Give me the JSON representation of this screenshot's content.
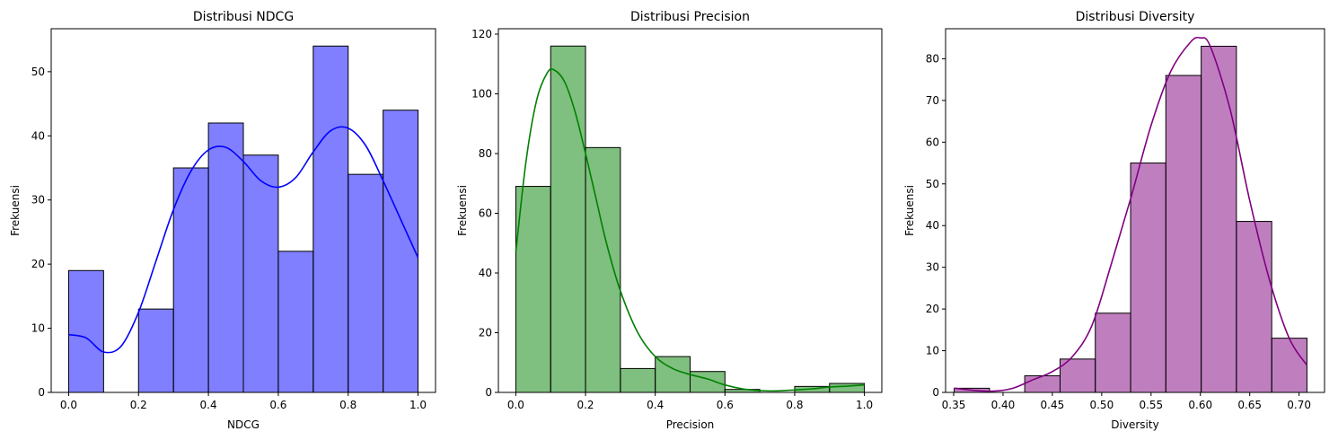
{
  "chart_data": [
    {
      "type": "histogram",
      "title": "Distribusi NDCG",
      "xlabel": "NDCG",
      "ylabel": "Frekuensi",
      "color": "#0000ff",
      "xlim": [
        -0.05,
        1.05
      ],
      "ylim": [
        0,
        56.7
      ],
      "xticks": [
        0.0,
        0.2,
        0.4,
        0.6,
        0.8,
        1.0
      ],
      "xtick_labels": [
        "0.0",
        "0.2",
        "0.4",
        "0.6",
        "0.8",
        "1.0"
      ],
      "yticks": [
        0,
        10,
        20,
        30,
        40,
        50
      ],
      "ytick_labels": [
        "0",
        "10",
        "20",
        "30",
        "40",
        "50"
      ],
      "bins": [
        0.0,
        0.1,
        0.2,
        0.3,
        0.4,
        0.5,
        0.6,
        0.7,
        0.8,
        0.9,
        1.0
      ],
      "counts": [
        19,
        0,
        13,
        35,
        42,
        37,
        22,
        54,
        34,
        44
      ],
      "kde": {
        "x": [
          0.0,
          0.05,
          0.1,
          0.15,
          0.2,
          0.25,
          0.3,
          0.35,
          0.4,
          0.45,
          0.5,
          0.55,
          0.6,
          0.65,
          0.7,
          0.75,
          0.8,
          0.85,
          0.9,
          0.95,
          1.0
        ],
        "y": [
          9,
          8.5,
          6.3,
          7.2,
          12.5,
          20.5,
          28.5,
          34.5,
          37.8,
          38.2,
          36,
          33,
          32,
          33.5,
          37.5,
          40.8,
          41.2,
          38.5,
          33,
          27,
          21
        ]
      }
    },
    {
      "type": "histogram",
      "title": "Distribusi Precision",
      "xlabel": "Precision",
      "ylabel": "Frekuensi",
      "color": "#008000",
      "xlim": [
        -0.05,
        1.05
      ],
      "ylim": [
        0,
        121.8
      ],
      "xticks": [
        0.0,
        0.2,
        0.4,
        0.6,
        0.8,
        1.0
      ],
      "xtick_labels": [
        "0.0",
        "0.2",
        "0.4",
        "0.6",
        "0.8",
        "1.0"
      ],
      "yticks": [
        0,
        20,
        40,
        60,
        80,
        100,
        120
      ],
      "ytick_labels": [
        "0",
        "20",
        "40",
        "60",
        "80",
        "100",
        "120"
      ],
      "bins": [
        0.0,
        0.1,
        0.2,
        0.3,
        0.4,
        0.5,
        0.6,
        0.7,
        0.8,
        0.9,
        1.0
      ],
      "counts": [
        69,
        116,
        82,
        8,
        12,
        7,
        1,
        0,
        2,
        3
      ],
      "kde": {
        "x": [
          0.0,
          0.03,
          0.06,
          0.09,
          0.11,
          0.14,
          0.17,
          0.2,
          0.23,
          0.26,
          0.3,
          0.35,
          0.4,
          0.45,
          0.5,
          0.55,
          0.6,
          0.65,
          0.7,
          0.75,
          0.8,
          0.85,
          0.9,
          0.95,
          1.0
        ],
        "y": [
          47,
          78,
          98,
          107,
          108,
          104,
          94,
          80,
          65,
          50,
          34,
          20,
          12,
          8,
          6,
          4.5,
          2.5,
          1.2,
          0.6,
          0.5,
          0.8,
          1.2,
          1.8,
          2.1,
          2.5
        ]
      }
    },
    {
      "type": "histogram",
      "title": "Distribusi Diversity",
      "xlabel": "Diversity",
      "ylabel": "Frekuensi",
      "color": "#800080",
      "xlim": [
        0.3418,
        0.7258
      ],
      "ylim": [
        0,
        87.2
      ],
      "xticks": [
        0.35,
        0.4,
        0.45,
        0.5,
        0.55,
        0.6,
        0.65,
        0.7
      ],
      "xtick_labels": [
        "0.35",
        "0.40",
        "0.45",
        "0.50",
        "0.55",
        "0.60",
        "0.65",
        "0.70"
      ],
      "yticks": [
        0,
        10,
        20,
        30,
        40,
        50,
        60,
        70,
        80
      ],
      "ytick_labels": [
        "0",
        "10",
        "20",
        "30",
        "40",
        "50",
        "60",
        "70",
        "80"
      ],
      "bins": [
        0.3505,
        0.3863,
        0.422,
        0.4578,
        0.4935,
        0.5293,
        0.565,
        0.6008,
        0.6365,
        0.6723,
        0.708
      ],
      "counts": [
        1,
        0,
        4,
        8,
        19,
        55,
        76,
        83,
        41,
        13
      ],
      "kde": {
        "x": [
          0.3505,
          0.37,
          0.39,
          0.41,
          0.43,
          0.45,
          0.47,
          0.49,
          0.51,
          0.53,
          0.55,
          0.57,
          0.59,
          0.6,
          0.61,
          0.63,
          0.65,
          0.67,
          0.69,
          0.708
        ],
        "y": [
          1,
          0.5,
          0.3,
          1,
          3,
          5,
          8.5,
          16,
          31,
          47,
          64,
          77,
          84,
          85,
          83,
          68,
          46,
          27,
          13,
          6.5
        ]
      }
    }
  ]
}
